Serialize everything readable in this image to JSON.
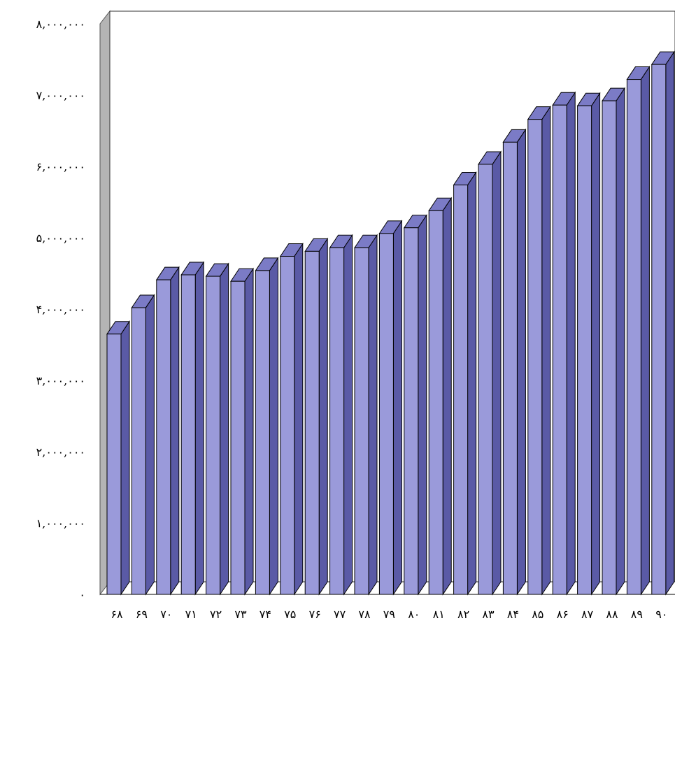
{
  "chart_data": {
    "type": "bar",
    "title": "",
    "xlabel": "",
    "ylabel": "",
    "ylim": [
      0,
      8000000
    ],
    "grid": false,
    "legend": "none",
    "categories": [
      "۶۸",
      "۶۹",
      "۷۰",
      "۷۱",
      "۷۲",
      "۷۳",
      "۷۴",
      "۷۵",
      "۷۶",
      "۷۷",
      "۷۸",
      "۷۹",
      "۸۰",
      "۸۱",
      "۸۲",
      "۸۳",
      "۸۴",
      "۸۵",
      "۸۶",
      "۸۷",
      "۸۸",
      "۸۹",
      "۹۰"
    ],
    "y_tick_labels": [
      "۰",
      "۱,۰۰۰,۰۰۰",
      "۲,۰۰۰,۰۰۰",
      "۳,۰۰۰,۰۰۰",
      "۴,۰۰۰,۰۰۰",
      "۵,۰۰۰,۰۰۰",
      "۶,۰۰۰,۰۰۰",
      "۷,۰۰۰,۰۰۰",
      "۸,۰۰۰,۰۰۰"
    ],
    "series": [
      {
        "values": [
          3650000,
          4020000,
          4410000,
          4480000,
          4460000,
          4390000,
          4540000,
          4740000,
          4810000,
          4860000,
          4860000,
          5060000,
          5140000,
          5380000,
          5740000,
          6030000,
          6340000,
          6660000,
          6860000,
          6850000,
          6920000,
          7220000,
          7430000
        ]
      }
    ],
    "colors": {
      "bar_front": "#5a5aa6",
      "bar_side": "#9a9ada",
      "bar_top": "#7b7bc6",
      "outline": "#000000",
      "wall": "#ffffff",
      "wall_side": "#b4b4b4",
      "axis_text": "#000000"
    }
  }
}
